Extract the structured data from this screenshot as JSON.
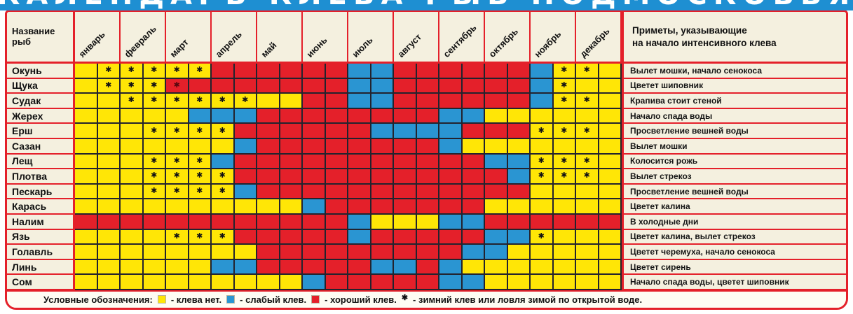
{
  "title": {
    "text": "КАЛЕНДАРЬ КЛЕВА РЫБ ПОДМОСКОВЬЯ"
  },
  "header": {
    "fish_col": "Название рыб",
    "signs_line1": "Приметы, указывающие",
    "signs_line2": "на начало интенсивного клева"
  },
  "symbols": {
    "star": "✱"
  },
  "colors": {
    "yellow": "#FFE606",
    "blue": "#2A95D2",
    "red": "#E4202A",
    "cream": "#F4F0DF",
    "band": "#1E8FD2",
    "gridline": "#23232e"
  },
  "legend": {
    "label": "Условные обозначения:",
    "items": [
      {
        "swatch": "yellow",
        "text": "- клева нет."
      },
      {
        "swatch": "blue",
        "text": "- слабый клев."
      },
      {
        "swatch": "red",
        "text": "- хороший клев."
      },
      {
        "symbol": "star",
        "text": "- зимний клев или ловля зимой по открытой воде."
      }
    ]
  },
  "chart_data": {
    "type": "heatmap",
    "title": "КАЛЕНДАРЬ КЛЕВА РЫБ ПОДМОСКОВЬЯ",
    "months": [
      "январь",
      "февраль",
      "март",
      "апрель",
      "май",
      "июнь",
      "июль",
      "август",
      "сентябрь",
      "октябрь",
      "ноябрь",
      "декабрь"
    ],
    "cells_per_month": 2,
    "cell_codes": {
      "y": "клева нет",
      "b": "слабый клев",
      "r": "хороший клев",
      "*": "зимний клев или ловля зимой по открытой воде"
    },
    "rows": [
      {
        "fish": "Окунь",
        "sign": "Вылет мошки, начало сенокоса",
        "cells": [
          "y",
          "y*",
          "y*",
          "y*",
          "y*",
          "y*",
          "r",
          "r",
          "r",
          "r",
          "r",
          "r",
          "b",
          "b",
          "r",
          "r",
          "r",
          "r",
          "r",
          "r",
          "b",
          "y*",
          "y*",
          "y"
        ]
      },
      {
        "fish": "Щука",
        "sign": "Цветет шиповник",
        "cells": [
          "y",
          "y*",
          "y*",
          "y*",
          "r*",
          "r",
          "r",
          "r",
          "r",
          "r",
          "r",
          "r",
          "b",
          "b",
          "r",
          "r",
          "r",
          "r",
          "r",
          "r",
          "b",
          "y*",
          "y",
          "y"
        ]
      },
      {
        "fish": "Судак",
        "sign": "Крапива стоит стеной",
        "cells": [
          "y",
          "y",
          "y*",
          "y*",
          "y*",
          "y*",
          "y*",
          "y*",
          "y",
          "y",
          "r",
          "r",
          "b",
          "b",
          "r",
          "r",
          "r",
          "r",
          "r",
          "r",
          "b",
          "y*",
          "y*",
          "y"
        ]
      },
      {
        "fish": "Жерех",
        "sign": "Начало спада воды",
        "cells": [
          "y",
          "y",
          "y",
          "y",
          "y",
          "b",
          "b",
          "b",
          "r",
          "r",
          "r",
          "r",
          "r",
          "r",
          "r",
          "r",
          "b",
          "b",
          "y",
          "y",
          "y",
          "y",
          "y",
          "y"
        ]
      },
      {
        "fish": "Ерш",
        "sign": "Просветление вешней воды",
        "cells": [
          "y",
          "y",
          "y",
          "y*",
          "y*",
          "y*",
          "y*",
          "r",
          "r",
          "r",
          "r",
          "r",
          "r",
          "b",
          "b",
          "b",
          "b",
          "r",
          "r",
          "r",
          "y*",
          "y*",
          "y*",
          "y"
        ]
      },
      {
        "fish": "Сазан",
        "sign": "Вылет мошки",
        "cells": [
          "y",
          "y",
          "y",
          "y",
          "y",
          "y",
          "y",
          "b",
          "r",
          "r",
          "r",
          "r",
          "r",
          "r",
          "r",
          "r",
          "b",
          "y",
          "y",
          "y",
          "y",
          "y",
          "y",
          "y"
        ]
      },
      {
        "fish": "Лещ",
        "sign": "Колосится рожь",
        "cells": [
          "y",
          "y",
          "y",
          "y*",
          "y*",
          "y*",
          "b",
          "r",
          "r",
          "r",
          "r",
          "r",
          "r",
          "r",
          "r",
          "r",
          "r",
          "r",
          "b",
          "b",
          "y*",
          "y*",
          "y*",
          "y"
        ]
      },
      {
        "fish": "Плотва",
        "sign": "Вылет стрекоз",
        "cells": [
          "y",
          "y",
          "y",
          "y*",
          "y*",
          "y*",
          "y*",
          "r",
          "r",
          "r",
          "r",
          "r",
          "r",
          "r",
          "r",
          "r",
          "r",
          "r",
          "r",
          "b",
          "y*",
          "y*",
          "y*",
          "y"
        ]
      },
      {
        "fish": "Пескарь",
        "sign": "Просветление вешней воды",
        "cells": [
          "y",
          "y",
          "y",
          "y*",
          "y*",
          "y*",
          "y*",
          "b",
          "r",
          "r",
          "r",
          "r",
          "r",
          "r",
          "r",
          "r",
          "r",
          "r",
          "r",
          "r",
          "y",
          "y",
          "y",
          "y"
        ]
      },
      {
        "fish": "Карась",
        "sign": "Цветет калина",
        "cells": [
          "y",
          "y",
          "y",
          "y",
          "y",
          "y",
          "y",
          "y",
          "y",
          "y",
          "b",
          "r",
          "r",
          "r",
          "r",
          "r",
          "r",
          "r",
          "y",
          "y",
          "y",
          "y",
          "y",
          "y"
        ]
      },
      {
        "fish": "Налим",
        "sign": "В холодные дни",
        "cells": [
          "r",
          "r",
          "r",
          "r",
          "r",
          "r",
          "r",
          "r",
          "r",
          "r",
          "r",
          "r",
          "b",
          "y",
          "y",
          "y",
          "b",
          "b",
          "r",
          "r",
          "r",
          "r",
          "r",
          "r"
        ]
      },
      {
        "fish": "Язь",
        "sign": "Цветет калина, вылет стрекоз",
        "cells": [
          "y",
          "y",
          "y",
          "y",
          "y*",
          "y*",
          "y*",
          "r",
          "r",
          "r",
          "r",
          "r",
          "b",
          "r",
          "r",
          "r",
          "r",
          "r",
          "b",
          "b",
          "y*",
          "y",
          "y",
          "y"
        ]
      },
      {
        "fish": "Голавль",
        "sign": "Цветет черемуха, начало сенокоса",
        "cells": [
          "y",
          "y",
          "y",
          "y",
          "y",
          "y",
          "y",
          "y",
          "r",
          "r",
          "r",
          "r",
          "r",
          "r",
          "r",
          "r",
          "r",
          "b",
          "b",
          "y",
          "y",
          "y",
          "y",
          "y"
        ]
      },
      {
        "fish": "Линь",
        "sign": "Цветет сирень",
        "cells": [
          "y",
          "y",
          "y",
          "y",
          "y",
          "y",
          "b",
          "b",
          "r",
          "r",
          "r",
          "r",
          "r",
          "b",
          "b",
          "r",
          "b",
          "y",
          "y",
          "y",
          "y",
          "y",
          "y",
          "y"
        ]
      },
      {
        "fish": "Сом",
        "sign": "Начало спада воды, цветет шиповник",
        "cells": [
          "y",
          "y",
          "y",
          "y",
          "y",
          "y",
          "y",
          "y",
          "y",
          "y",
          "b",
          "r",
          "r",
          "r",
          "r",
          "r",
          "b",
          "b",
          "y",
          "y",
          "y",
          "y",
          "y",
          "y"
        ]
      }
    ]
  }
}
